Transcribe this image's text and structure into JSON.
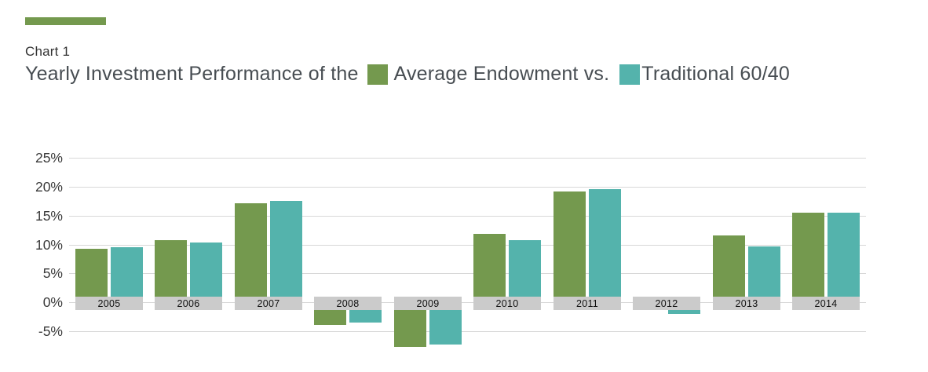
{
  "header": {
    "kicker": "Chart 1",
    "title_prefix": "Yearly Investment Performance of the",
    "legend": [
      {
        "label": "Average Endowment vs.",
        "color": "#74994E"
      },
      {
        "label": "Traditional 60/40",
        "color": "#54B3AC"
      }
    ],
    "accent_color": "#74994E"
  },
  "chart_data": {
    "type": "bar",
    "title": "Yearly Investment Performance of the Average Endowment vs. Traditional 60/40",
    "categories": [
      "2005",
      "2006",
      "2007",
      "2008",
      "2009",
      "2010",
      "2011",
      "2012",
      "2013",
      "2014"
    ],
    "series": [
      {
        "name": "Average Endowment",
        "color": "#74994E",
        "values": [
          9.3,
          10.7,
          17.2,
          -4.0,
          -7.7,
          11.9,
          19.2,
          -0.3,
          11.5,
          15.5
        ]
      },
      {
        "name": "Traditional 60/40",
        "color": "#54B3AC",
        "values": [
          9.5,
          10.4,
          17.6,
          -3.6,
          -7.3,
          10.8,
          19.6,
          -2.0,
          9.6,
          15.5
        ]
      }
    ],
    "y_axis": {
      "tick_labels": [
        "25%",
        "20%",
        "15%",
        "10%",
        "5%",
        "0%",
        "-5%"
      ],
      "tick_values": [
        25,
        20,
        15,
        10,
        5,
        0,
        -5
      ]
    },
    "ylim": [
      -8,
      26
    ],
    "grid": "horizontal",
    "legend_position": "in-title",
    "x_label_style": "gray-strip-on-zero-line",
    "colors": {
      "grid_line": "#D8D8D8",
      "label_strip": "#CBCBCB",
      "tick_text": "#3A3A3A",
      "year_text": "#111111"
    }
  }
}
